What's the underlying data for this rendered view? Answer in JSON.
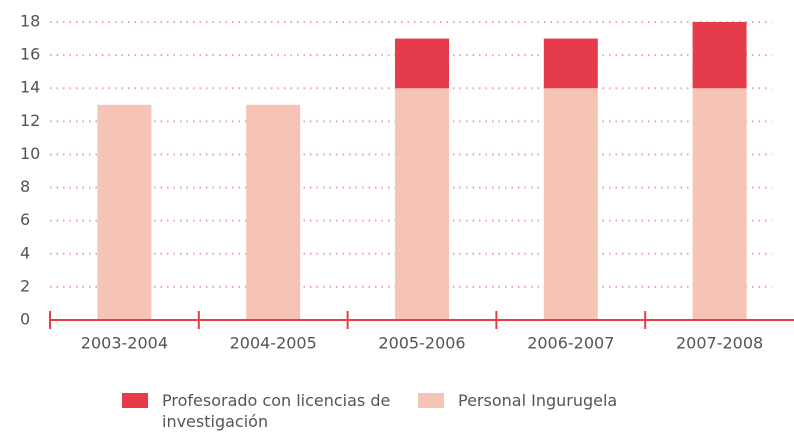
{
  "chart_data": {
    "type": "stacked_bar",
    "categories": [
      "2003-2004",
      "2004-2005",
      "2005-2006",
      "2006-2007",
      "2007-2008"
    ],
    "series": [
      {
        "name": "Profesorado con licencias de investigación",
        "color": "#e63b4a",
        "values": [
          0,
          0,
          3,
          3,
          4
        ]
      },
      {
        "name": "Personal Ingurugela",
        "color": "#f6c3b7",
        "values": [
          13,
          13,
          14,
          14,
          14
        ]
      }
    ],
    "ylim": [
      0,
      18
    ],
    "yticks": [
      0,
      2,
      4,
      6,
      8,
      10,
      12,
      14,
      16,
      18
    ],
    "grid": true
  }
}
